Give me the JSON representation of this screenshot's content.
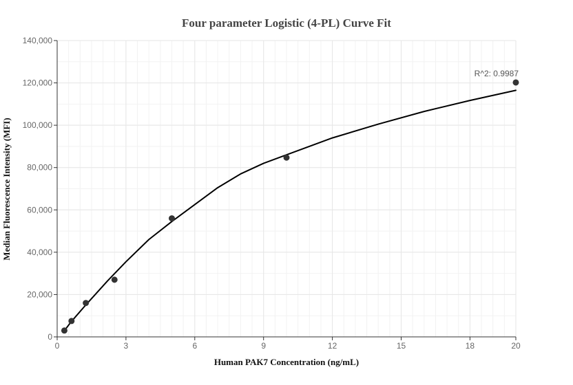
{
  "chart_data": {
    "type": "scatter",
    "title": "Four parameter Logistic (4-PL) Curve Fit",
    "xlabel": "Human PAK7 Concentration (ng/mL)",
    "ylabel": "Median Fluorescence Intensity (MFI)",
    "xlim": [
      0,
      20
    ],
    "ylim": [
      0,
      140000
    ],
    "x_ticks": [
      0,
      3,
      6,
      9,
      12,
      15,
      18,
      20
    ],
    "x_tick_labels": [
      "0",
      "3",
      "6",
      "9",
      "12",
      "15",
      "18",
      "20"
    ],
    "y_ticks": [
      0,
      20000,
      40000,
      60000,
      80000,
      100000,
      120000,
      140000
    ],
    "y_tick_labels": [
      "0",
      "20,000",
      "40,000",
      "60,000",
      "80,000",
      "100,000",
      "120,000",
      "140,000"
    ],
    "grid": true,
    "series": [
      {
        "type": "scatter",
        "x": [
          0.313,
          0.625,
          1.25,
          2.5,
          5,
          10,
          20
        ],
        "y": [
          3000,
          7500,
          16000,
          27000,
          56000,
          84700,
          120200
        ],
        "color": "#333333"
      },
      {
        "type": "line",
        "x": [
          0.3,
          0.6,
          1.2,
          2.2,
          3,
          4,
          5,
          6,
          7,
          8,
          9,
          10,
          12,
          14,
          16,
          18,
          20
        ],
        "y": [
          2700,
          7000,
          14500,
          26500,
          35500,
          46000,
          54500,
          62500,
          70500,
          77000,
          82000,
          86000,
          94000,
          100500,
          106500,
          111700,
          116500
        ],
        "color": "#000000"
      }
    ],
    "annotations": [
      {
        "text": "R^2: 0.9987",
        "x": 20,
        "y": 120200
      }
    ],
    "colors": {
      "grid": "#e6e6e6",
      "axis": "#333333",
      "point": "#333333",
      "curve": "#000000"
    }
  }
}
